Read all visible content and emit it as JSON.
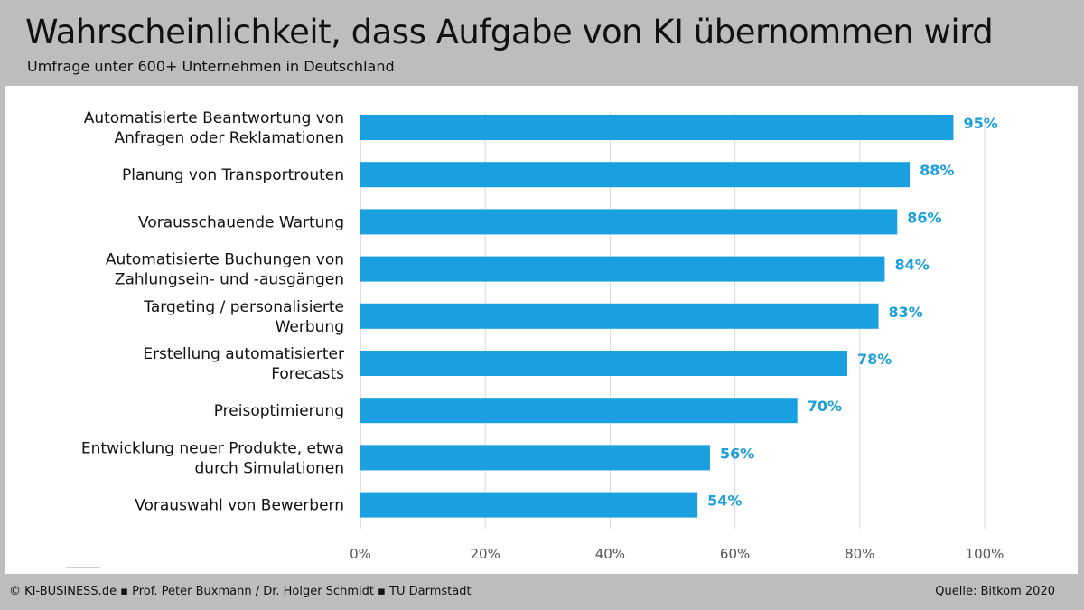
{
  "slide": {
    "title": "Wahrscheinlichkeit, dass Aufgabe von KI übernommen wird",
    "subtitle": "Umfrage unter 600+ Unternehmen in Deutschland",
    "footer_left": "© KI-BUSINESS.de ▪ Prof. Peter Buxmann / Dr. Holger Schmidt ▪ TU Darmstadt",
    "footer_right": "Quelle: Bitkom 2020"
  },
  "colors": {
    "bar": "#1aa0e0",
    "value_label": "#1a9fd9",
    "background": "#bdbdbd",
    "panel": "#ffffff"
  },
  "chart_data": {
    "type": "bar",
    "orientation": "horizontal",
    "categories": [
      [
        "Automatisierte Beantwortung von",
        "Anfragen oder Reklamationen"
      ],
      [
        "Planung von Transportrouten"
      ],
      [
        "Vorausschauende Wartung"
      ],
      [
        "Automatisierte Buchungen von",
        "Zahlungsein- und -ausgängen"
      ],
      [
        "Targeting / personalisierte",
        "Werbung"
      ],
      [
        "Erstellung automatisierter",
        "Forecasts"
      ],
      [
        "Preisoptimierung"
      ],
      [
        "Entwicklung neuer Produkte, etwa",
        "durch Simulationen"
      ],
      [
        "Vorauswahl von Bewerbern"
      ]
    ],
    "values": [
      95,
      88,
      86,
      84,
      83,
      78,
      70,
      56,
      54
    ],
    "value_labels": [
      "95%",
      "88%",
      "86%",
      "84%",
      "83%",
      "78%",
      "70%",
      "56%",
      "54%"
    ],
    "xlim": [
      0,
      100
    ],
    "xticks": [
      0,
      20,
      40,
      60,
      80,
      100
    ],
    "xtick_labels": [
      "0%",
      "20%",
      "40%",
      "60%",
      "80%",
      "100%"
    ],
    "grid": true
  }
}
